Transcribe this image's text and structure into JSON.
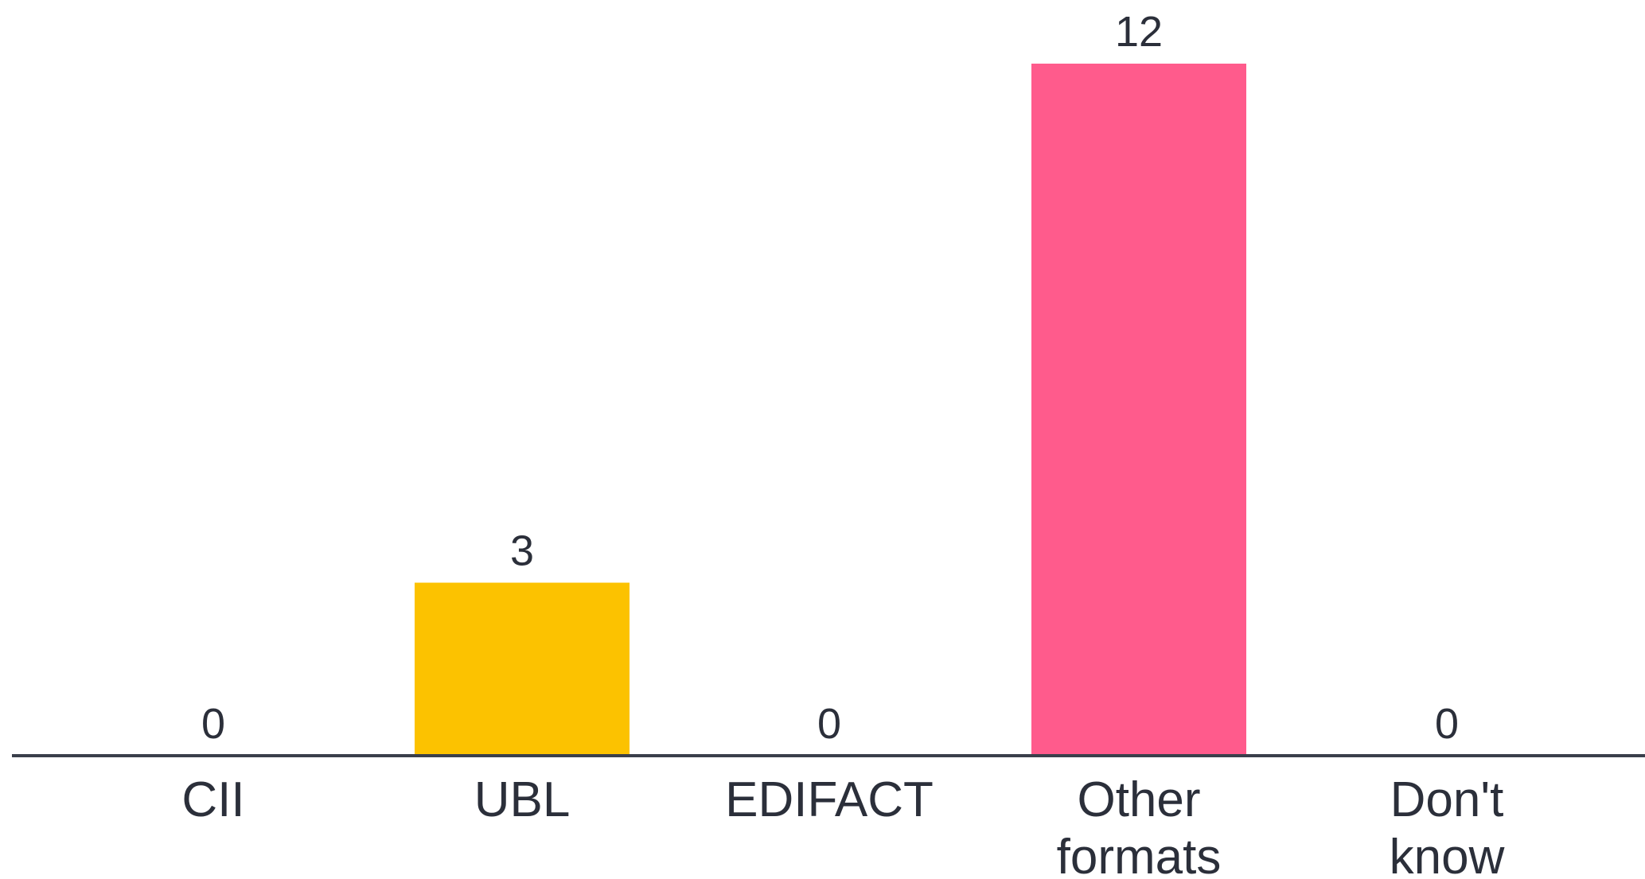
{
  "chart_data": {
    "type": "bar",
    "categories": [
      "CII",
      "UBL",
      "EDIFACT",
      "Other formats",
      "Don't know"
    ],
    "category_lines": [
      [
        "CII"
      ],
      [
        "UBL"
      ],
      [
        "EDIFACT"
      ],
      [
        "Other",
        "formats"
      ],
      [
        "Don't",
        "know"
      ]
    ],
    "values": [
      0,
      3,
      0,
      12,
      0
    ],
    "value_labels": [
      "0",
      "3",
      "0",
      "12",
      "0"
    ],
    "colors": [
      "#FCC200",
      "#FCC200",
      "#FCC200",
      "#FF5B8C",
      "#FCC200"
    ],
    "axis_color": "#3a3f4b",
    "title": "",
    "xlabel": "",
    "ylabel": "",
    "ylim": [
      0,
      12
    ],
    "grid": false,
    "legend": "none"
  }
}
